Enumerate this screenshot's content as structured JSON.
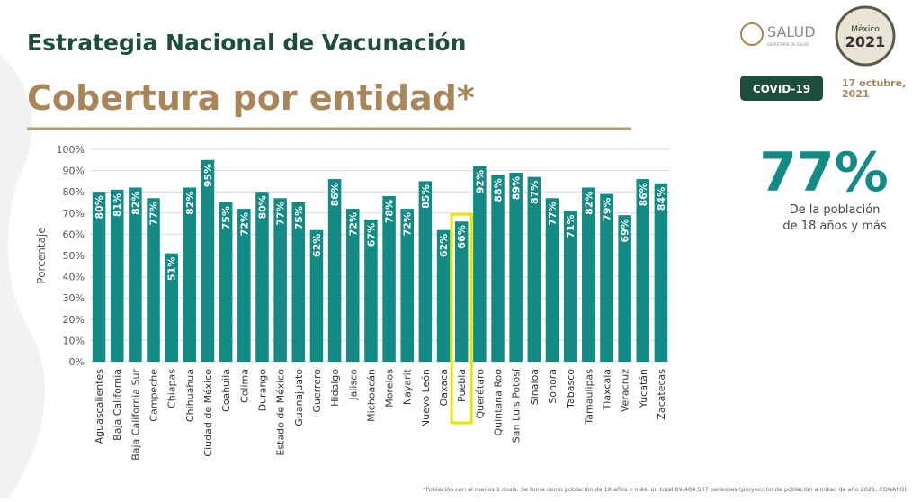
{
  "header": {
    "title": "Estrategia Nacional de Vacunación",
    "subtitle": "Cobertura por entidad*",
    "logo": "SALUD",
    "logo_sub": "SECRETARÍA DE SALUD",
    "emblem": [
      "México",
      "2021"
    ],
    "badge": "COVID-19",
    "date": [
      "17 octubre,",
      "2021"
    ]
  },
  "stat": {
    "value": "77%",
    "caption": [
      "De la población",
      "de 18 años y más"
    ]
  },
  "footnote": "*Población con al menos 1 dosis. Se toma como población de 18 años o más, un total 89,484,507 personas (proyección de población a mitad de año 2021, CONAPO).",
  "chart_data": {
    "type": "bar",
    "y_label": "Porcentaje",
    "color": "#138a84",
    "grid": true,
    "highlight_category": "Puebla",
    "highlight_color": "#e6e600",
    "categories": [
      "Aguascalientes",
      "Baja California",
      "Baja California Sur",
      "Campeche",
      "Chiapas",
      "Chihuahua",
      "Ciudad de México",
      "Coahuila",
      "Colima",
      "Durango",
      "Estado de México",
      "Guanajuato",
      "Guerrero",
      "Hidalgo",
      "Jalisco",
      "Michoacán",
      "Morelos",
      "Nayarit",
      "Nuevo León",
      "Oaxaca",
      "Puebla",
      "Querétaro",
      "Quintana Roo",
      "San Luis Potosí",
      "Sinaloa",
      "Sonora",
      "Tabasco",
      "Tamaulipas",
      "Tlaxcala",
      "Veracruz",
      "Yucatán",
      "Zacatecas"
    ],
    "values": [
      80,
      81,
      82,
      77,
      51,
      82,
      95,
      75,
      72,
      80,
      77,
      75,
      62,
      86,
      72,
      67,
      78,
      72,
      85,
      62,
      66,
      92,
      88,
      89,
      87,
      77,
      71,
      82,
      79,
      69,
      86,
      84
    ],
    "value_labels": [
      "80%",
      "81%",
      "82%",
      "77%",
      "51%",
      "82%",
      "95%",
      "75%",
      "72%",
      "80%",
      "77%",
      "75%",
      "62%",
      "86%",
      "72%",
      "67%",
      "78%",
      "72%",
      "85%",
      "62%",
      "66%",
      "92%",
      "88%",
      "89%",
      "87%",
      "77%",
      "71%",
      "82%",
      "79%",
      "69%",
      "86%",
      "84%"
    ],
    "ylim": [
      0,
      100
    ],
    "yticks": [
      {
        "value": 0,
        "label": "0%"
      },
      {
        "value": 10,
        "label": "10%"
      },
      {
        "value": 20,
        "label": "20%"
      },
      {
        "value": 30,
        "label": "30%"
      },
      {
        "value": 40,
        "label": "40%"
      },
      {
        "value": 50,
        "label": "50%"
      },
      {
        "value": 60,
        "label": "60%"
      },
      {
        "value": 70,
        "label": "70%"
      },
      {
        "value": 80,
        "label": "80%"
      },
      {
        "value": 90,
        "label": "90%"
      },
      {
        "value": 100,
        "label": "100%"
      }
    ]
  }
}
